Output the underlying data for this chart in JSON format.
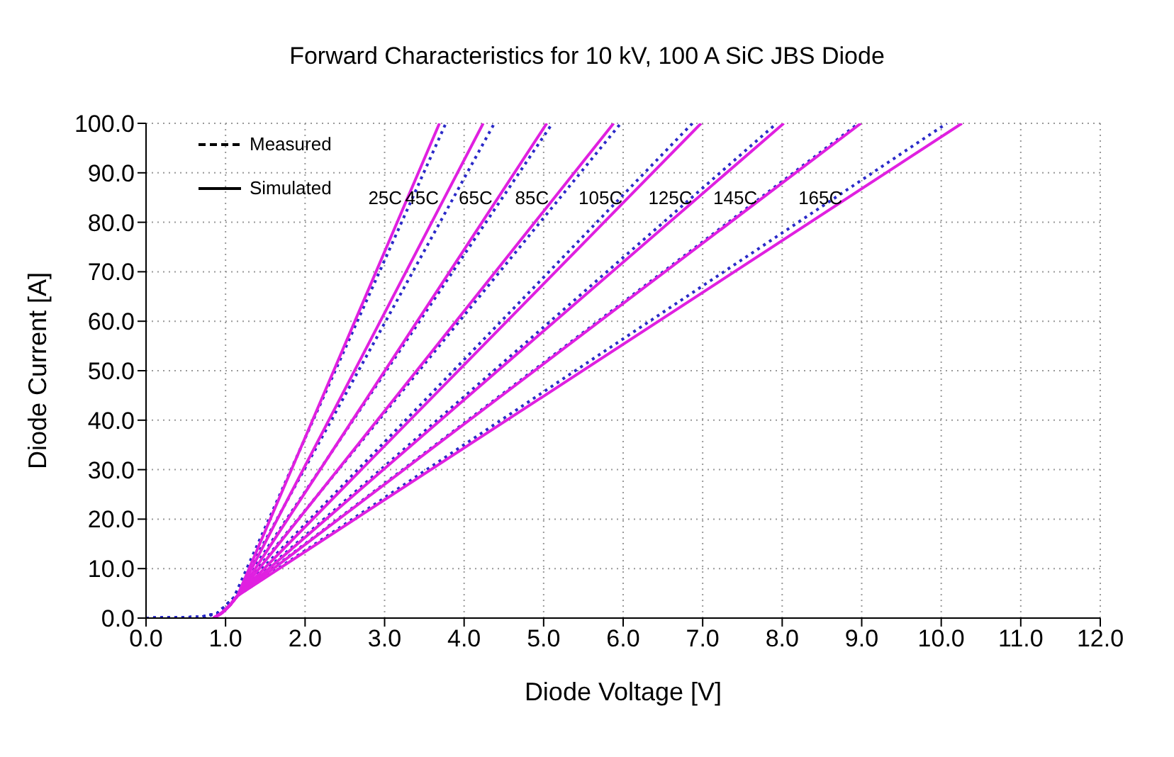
{
  "chart_data": {
    "type": "line",
    "title": "Forward Characteristics for 10 kV, 100 A SiC JBS Diode",
    "xlabel": "Diode Voltage [V]",
    "ylabel": "Diode Current [A]",
    "xlim": [
      0,
      12
    ],
    "ylim": [
      0,
      100
    ],
    "xticks": [
      {
        "value": 0,
        "label": "0.0"
      },
      {
        "value": 1,
        "label": "1.0"
      },
      {
        "value": 2,
        "label": "2.0"
      },
      {
        "value": 3,
        "label": "3.0"
      },
      {
        "value": 4,
        "label": "4.0"
      },
      {
        "value": 5,
        "label": "5.0"
      },
      {
        "value": 6,
        "label": "6.0"
      },
      {
        "value": 7,
        "label": "7.0"
      },
      {
        "value": 8,
        "label": "8.0"
      },
      {
        "value": 9,
        "label": "9.0"
      },
      {
        "value": 10,
        "label": "10.0"
      },
      {
        "value": 11,
        "label": "11.0"
      },
      {
        "value": 12,
        "label": "12.0"
      }
    ],
    "yticks": [
      {
        "value": 0,
        "label": "0.0"
      },
      {
        "value": 10,
        "label": "10.0"
      },
      {
        "value": 20,
        "label": "20.0"
      },
      {
        "value": 30,
        "label": "30.0"
      },
      {
        "value": 40,
        "label": "40.0"
      },
      {
        "value": 50,
        "label": "50.0"
      },
      {
        "value": 60,
        "label": "60.0"
      },
      {
        "value": 70,
        "label": "70.0"
      },
      {
        "value": 80,
        "label": "80.0"
      },
      {
        "value": 90,
        "label": "90.0"
      },
      {
        "value": 100,
        "label": "100.0"
      }
    ],
    "grid": true,
    "marker": "none",
    "series": [
      {
        "color": "#2a2ac8",
        "line_style": "dotted",
        "x": [
          0,
          0.7,
          0.9,
          1.0,
          1.1,
          3.77
        ],
        "values": [
          0,
          0.2,
          1,
          2.5,
          4,
          100
        ]
      },
      {
        "color": "#2a2ac8",
        "line_style": "dotted",
        "x": [
          0,
          0.7,
          0.9,
          1.0,
          1.1,
          4.38
        ],
        "values": [
          0,
          0.2,
          1,
          2.5,
          4,
          100
        ]
      },
      {
        "color": "#2a2ac8",
        "line_style": "dotted",
        "x": [
          0,
          0.7,
          0.9,
          1.0,
          1.1,
          5.11
        ],
        "values": [
          0,
          0.2,
          1,
          2.5,
          4,
          100
        ]
      },
      {
        "color": "#2a2ac8",
        "line_style": "dotted",
        "x": [
          0,
          0.7,
          0.9,
          1.0,
          1.1,
          5.97
        ],
        "values": [
          0,
          0.2,
          1,
          2.5,
          4,
          100
        ]
      },
      {
        "color": "#2a2ac8",
        "line_style": "dotted",
        "x": [
          0,
          0.7,
          0.9,
          1.0,
          1.1,
          6.87
        ],
        "values": [
          0,
          0.2,
          1,
          2.5,
          4,
          100
        ]
      },
      {
        "color": "#2a2ac8",
        "line_style": "dotted",
        "x": [
          0,
          0.7,
          0.9,
          1.0,
          1.1,
          7.93
        ],
        "values": [
          0,
          0.2,
          1,
          2.5,
          4,
          100
        ]
      },
      {
        "color": "#2a2ac8",
        "line_style": "dotted",
        "x": [
          0,
          0.7,
          0.9,
          1.0,
          1.1,
          8.96
        ],
        "values": [
          0,
          0.2,
          1,
          2.5,
          4,
          100
        ]
      },
      {
        "color": "#2a2ac8",
        "line_style": "dotted",
        "x": [
          0,
          0.7,
          0.9,
          1.0,
          1.1,
          10.07
        ],
        "values": [
          0,
          0.2,
          1,
          2.5,
          4,
          100
        ]
      },
      {
        "name": "25C",
        "color": "#e020e0",
        "line_style": "solid",
        "x": [
          0.85,
          0.95,
          1.05,
          1.15,
          3.69
        ],
        "values": [
          0,
          1,
          2.5,
          4.5,
          100
        ]
      },
      {
        "name": "45C",
        "color": "#e020e0",
        "line_style": "solid",
        "x": [
          0.85,
          0.95,
          1.05,
          1.15,
          4.24
        ],
        "values": [
          0,
          1,
          2.5,
          4.5,
          100
        ]
      },
      {
        "name": "65C",
        "color": "#e020e0",
        "line_style": "solid",
        "x": [
          0.85,
          0.95,
          1.05,
          1.15,
          5.04
        ],
        "values": [
          0,
          1,
          2.5,
          4.5,
          100
        ]
      },
      {
        "name": "85C",
        "color": "#e020e0",
        "line_style": "solid",
        "x": [
          0.85,
          0.95,
          1.05,
          1.15,
          5.88
        ],
        "values": [
          0,
          1,
          2.5,
          4.5,
          100
        ]
      },
      {
        "name": "105C",
        "color": "#e020e0",
        "line_style": "solid",
        "x": [
          0.85,
          0.95,
          1.05,
          1.15,
          6.98
        ],
        "values": [
          0,
          1,
          2.5,
          4.5,
          100
        ]
      },
      {
        "name": "125C",
        "color": "#e020e0",
        "line_style": "solid",
        "x": [
          0.85,
          0.95,
          1.05,
          1.15,
          8.02
        ],
        "values": [
          0,
          1,
          2.5,
          4.5,
          100
        ]
      },
      {
        "name": "145C",
        "color": "#e020e0",
        "line_style": "solid",
        "x": [
          0.85,
          0.95,
          1.05,
          1.15,
          8.99
        ],
        "values": [
          0,
          1,
          2.5,
          4.5,
          100
        ]
      },
      {
        "name": "165C",
        "color": "#e020e0",
        "line_style": "solid",
        "x": [
          0.85,
          0.95,
          1.05,
          1.15,
          10.26
        ],
        "values": [
          0,
          1,
          2.5,
          4.5,
          100
        ]
      }
    ],
    "annotations": [
      "Measured",
      "Simulated"
    ]
  }
}
